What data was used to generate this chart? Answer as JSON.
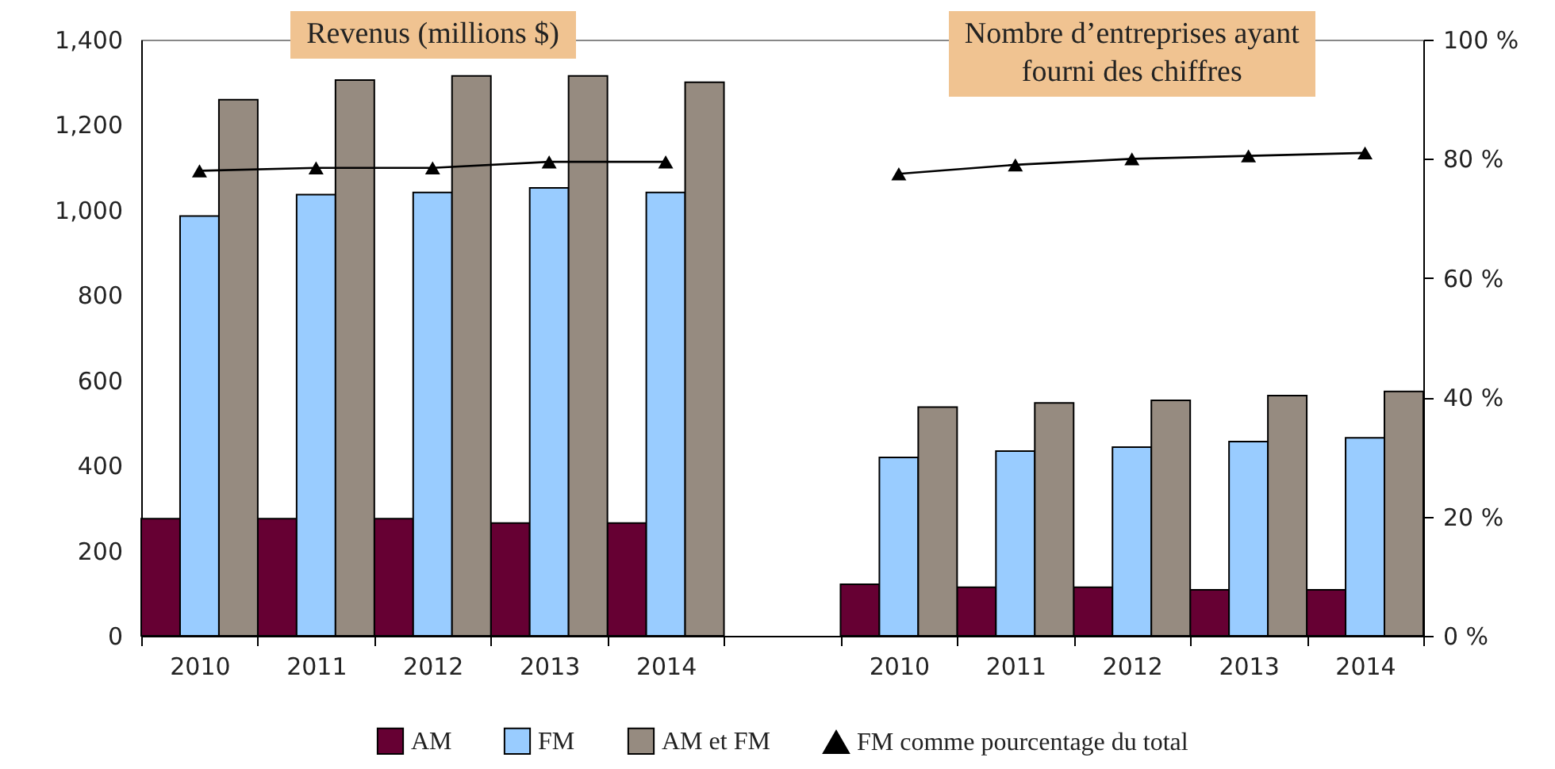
{
  "chart_data": {
    "type": "bar",
    "categories": [
      "2010",
      "2011",
      "2012",
      "2013",
      "2014",
      null,
      "2010",
      "2011",
      "2012",
      "2013",
      "2014"
    ],
    "series": [
      {
        "name": "AM",
        "color": "#660033",
        "values": [
          275,
          275,
          275,
          265,
          265,
          null,
          121,
          114,
          114,
          108,
          108
        ]
      },
      {
        "name": "FM",
        "color": "#99ccff",
        "values": [
          986,
          1036,
          1041,
          1052,
          1041,
          null,
          419,
          434,
          443,
          456,
          465
        ]
      },
      {
        "name": "AM et FM",
        "color": "#968b80",
        "values": [
          1259,
          1305,
          1315,
          1315,
          1300,
          null,
          537,
          547,
          553,
          564,
          574
        ]
      },
      {
        "name": "FM comme pourcentage du total",
        "type": "line",
        "axis": "y2",
        "color": "#000000",
        "marker": "triangle",
        "values": [
          78,
          78.5,
          78.5,
          79.5,
          79.5,
          null,
          77.5,
          79,
          80,
          80.5,
          81
        ]
      }
    ],
    "ylim": [
      0,
      1400
    ],
    "yticks": [
      0,
      200,
      400,
      600,
      800,
      {
        "value": 1000,
        "label": "1,000"
      },
      {
        "value": 1200,
        "label": "1,200"
      },
      {
        "value": 1400,
        "label": "1,400"
      }
    ],
    "y2lim": [
      0,
      100
    ],
    "y2ticks": [
      {
        "value": 0,
        "label": "0 %"
      },
      {
        "value": 20,
        "label": "20 %"
      },
      {
        "value": 40,
        "label": "40 %"
      },
      {
        "value": 60,
        "label": "60 %"
      },
      {
        "value": 80,
        "label": "80 %"
      },
      {
        "value": 100,
        "label": "100 %"
      }
    ],
    "annotations": [
      "Revenus (millions $)",
      "Nombre d’entreprises ayant\nfourni des chiffres"
    ],
    "legend": "bottom"
  }
}
